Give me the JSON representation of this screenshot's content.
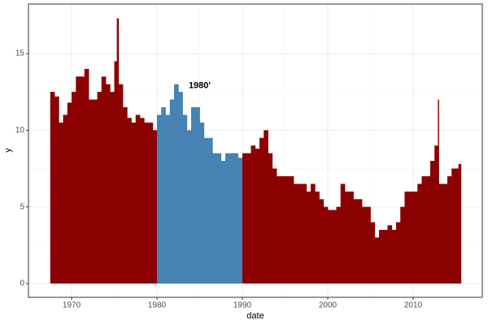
{
  "chart_data": {
    "type": "bar",
    "x": [
      1967.5,
      1968,
      1968.5,
      1969,
      1969.5,
      1970,
      1970.5,
      1971,
      1971.5,
      1972,
      1972.5,
      1973,
      1973.5,
      1974,
      1974.5,
      1975,
      1975.3,
      1975.5,
      1976,
      1976.5,
      1977,
      1977.5,
      1978,
      1978.5,
      1979,
      1979.5,
      1980,
      1980.5,
      1981,
      1981.5,
      1982,
      1982.5,
      1983,
      1983.5,
      1984,
      1984.5,
      1985,
      1985.5,
      1986,
      1986.5,
      1987,
      1987.5,
      1988,
      1988.5,
      1989,
      1989.5,
      1990,
      1990.5,
      1991,
      1991.5,
      1992,
      1992.5,
      1993,
      1993.5,
      1994,
      1994.5,
      1995,
      1995.5,
      1996,
      1996.5,
      1997,
      1997.5,
      1998,
      1998.5,
      1999,
      1999.5,
      2000,
      2000.5,
      2001,
      2001.5,
      2002,
      2002.5,
      2003,
      2003.5,
      2004,
      2004.5,
      2005,
      2005.5,
      2006,
      2006.5,
      2007,
      2007.5,
      2008,
      2008.5,
      2009,
      2009.5,
      2010,
      2010.5,
      2011,
      2011.5,
      2012,
      2012.5,
      2012.9,
      2013,
      2013.5,
      2014,
      2014.5,
      2015,
      2015.3
    ],
    "values": [
      12.5,
      12.2,
      10.5,
      11,
      11.8,
      12.5,
      13.5,
      13.5,
      14,
      12,
      12,
      12.5,
      13.5,
      13,
      12.5,
      14.5,
      17.3,
      13,
      11.5,
      10.8,
      10.5,
      11,
      10.8,
      10.5,
      10.5,
      10,
      11,
      11.5,
      11,
      12,
      13,
      12.5,
      11,
      10,
      11.5,
      11.5,
      10.5,
      9.5,
      9.5,
      8.5,
      8.5,
      8,
      8.5,
      8.5,
      8.5,
      8.2,
      8.5,
      8.5,
      9,
      8.8,
      9.5,
      10,
      8.5,
      7.5,
      7,
      7,
      7,
      7,
      6.5,
      6.5,
      6.5,
      6,
      6.5,
      6,
      5.5,
      5,
      4.8,
      4.8,
      5,
      6.5,
      6,
      6,
      5.5,
      5.5,
      5,
      5,
      4,
      3,
      3.5,
      3.5,
      3.8,
      3.5,
      4,
      5,
      6,
      6,
      6,
      6.5,
      7,
      7,
      8,
      9,
      12,
      6.5,
      6.5,
      7,
      7.5,
      7.5,
      7.8
    ],
    "color": "#8b0000",
    "highlight": {
      "xlim": [
        1980,
        1990
      ],
      "color": "#4682b4"
    },
    "annotation": {
      "text": "1980'",
      "x": 1985,
      "y": 12.9
    },
    "x_label": "date",
    "y_label": "y",
    "xlim": [
      1964.95,
      2018.1
    ],
    "ylim": [
      -0.9,
      18.23
    ],
    "xticks": [
      1970,
      1980,
      1990,
      2000,
      2010
    ],
    "yticks": [
      0,
      5,
      10,
      15
    ],
    "grid": true
  }
}
